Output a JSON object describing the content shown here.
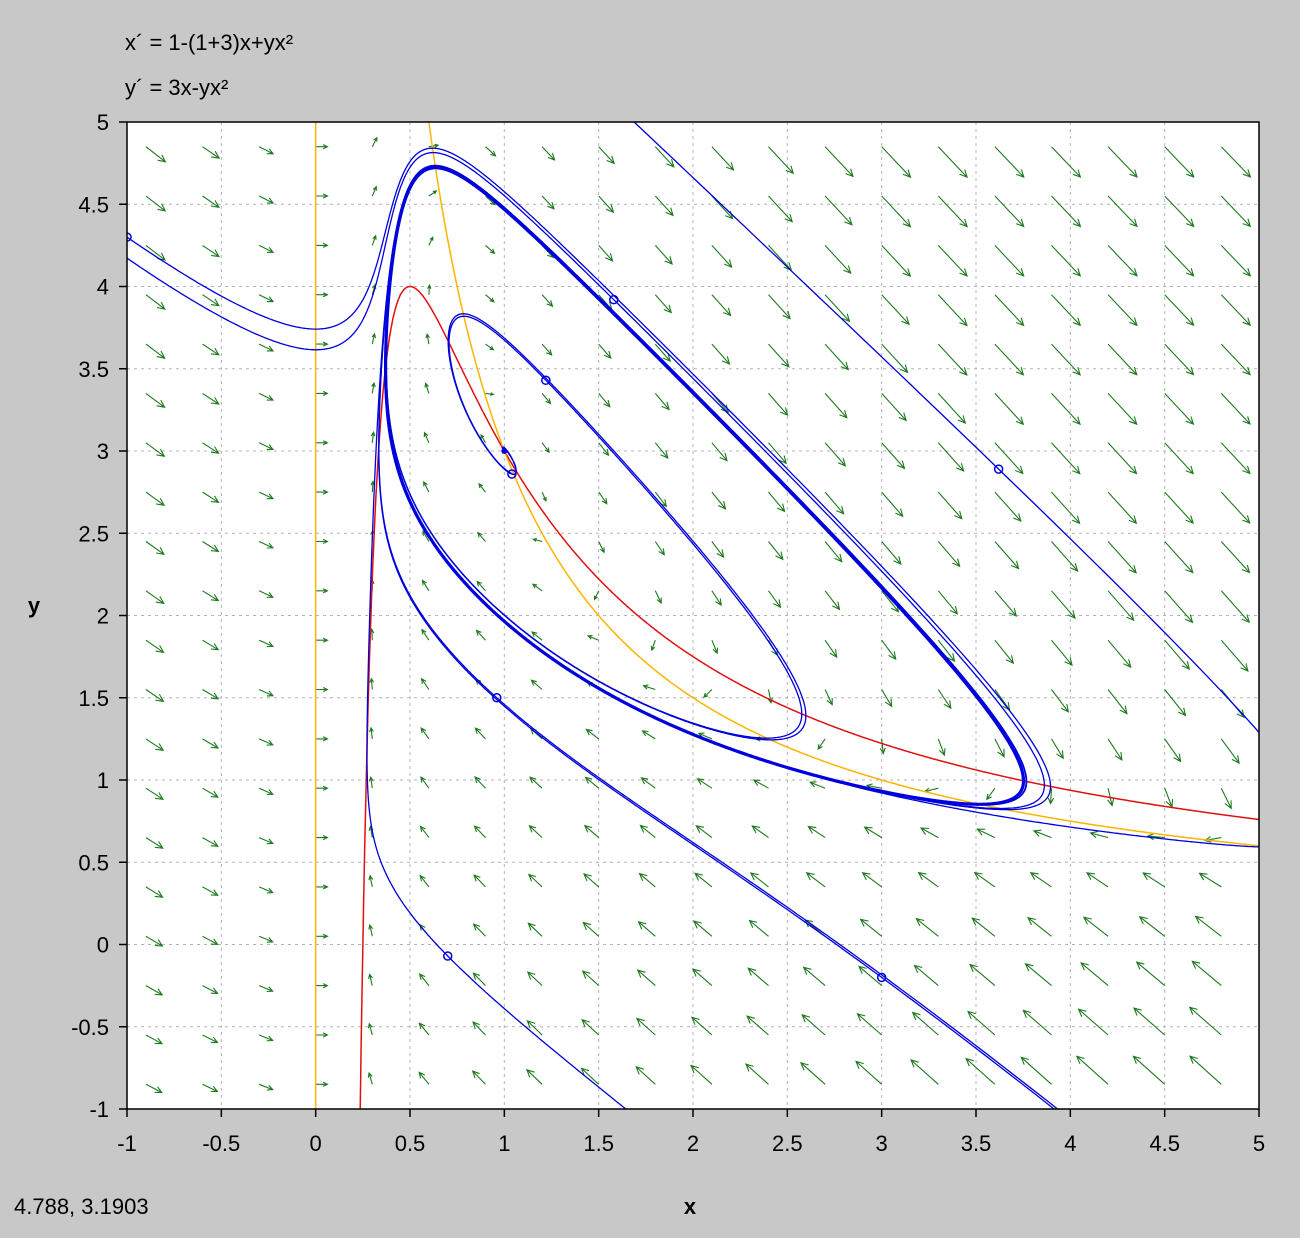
{
  "equations": {
    "x_prime": "x´ = 1-(1+3)x+yx²",
    "y_prime": "y´ = 3x-yx²"
  },
  "status": {
    "cursor_coords": "4.788,  3.1903"
  },
  "colors": {
    "panel_bg": "#c8c8c8",
    "plot_bg": "#ffffff",
    "vector_field": "#1e7a1e",
    "trajectory": "#0000dd",
    "x_nullcline": "#e01010",
    "y_nullcline": "#ffb400",
    "grid": "#b4b4b4"
  },
  "chart_data": {
    "type": "phase-portrait",
    "xlabel": "x",
    "ylabel": "y",
    "xlim": [
      -1,
      5
    ],
    "ylim": [
      -1,
      5
    ],
    "x_ticks": [
      "-1",
      "-0.5",
      "0",
      "0.5",
      "1",
      "1.5",
      "2",
      "2.5",
      "3",
      "3.5",
      "4",
      "4.5",
      "5"
    ],
    "y_ticks": [
      "5",
      "4.5",
      "4",
      "3.5",
      "3",
      "2.5",
      "2",
      "1.5",
      "1",
      "0.5",
      "0",
      "-0.5",
      "-1"
    ],
    "grid": true,
    "system": {
      "a": 1,
      "b": 3
    },
    "x_nullcline": "y = (4x - 1) / x^2",
    "y_nullcline": [
      "x = 0",
      "y = 3 / x"
    ],
    "equilibrium": [
      1,
      3
    ],
    "trajectory_seeds": [
      [
        1.58,
        3.92
      ],
      [
        1.22,
        3.43
      ],
      [
        3.62,
        2.89
      ],
      [
        0.96,
        1.5
      ],
      [
        0.7,
        -0.07
      ],
      [
        -1.0,
        4.3
      ],
      [
        3.0,
        -0.2
      ],
      [
        1.04,
        2.86
      ]
    ],
    "limit_cycle_seed": [
      0.36,
      3.6
    ]
  }
}
